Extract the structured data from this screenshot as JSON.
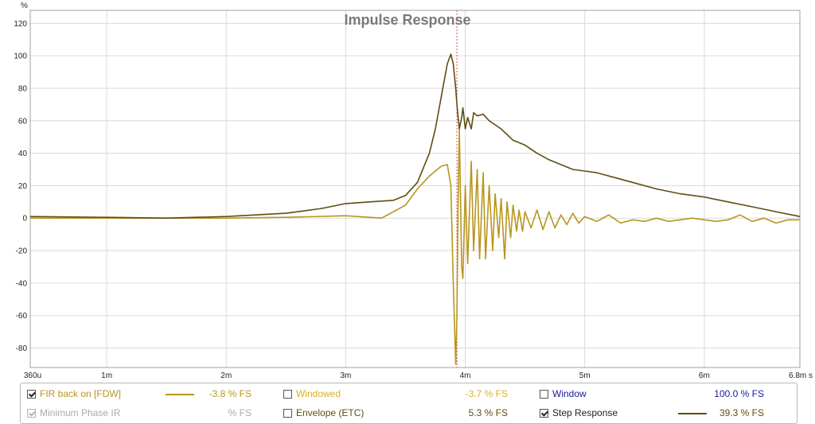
{
  "chart_data": {
    "type": "line",
    "title": "Impulse Response",
    "ylabel": "%",
    "xlabel": "s",
    "ylim": [
      -92,
      128
    ],
    "xlim": [
      0.36,
      6.8
    ],
    "yticks": [
      "120",
      "100",
      "80",
      "60",
      "40",
      "20",
      "0",
      "-20",
      "-40",
      "-60",
      "-80"
    ],
    "xticks": [
      {
        "v": 0.36,
        "label": "360u"
      },
      {
        "v": 1,
        "label": "1m"
      },
      {
        "v": 2,
        "label": "2m"
      },
      {
        "v": 3,
        "label": "3m"
      },
      {
        "v": 4,
        "label": "4m"
      },
      {
        "v": 5,
        "label": "5m"
      },
      {
        "v": 6,
        "label": "6m"
      },
      {
        "v": 6.8,
        "label": "6.8m s"
      }
    ],
    "grid": true,
    "cursor_x": 3.93,
    "series": [
      {
        "name": "FIR back on [FDW]",
        "color": "#b8961e",
        "x": [
          0.36,
          1,
          1.5,
          2,
          2.5,
          3,
          3.3,
          3.5,
          3.6,
          3.7,
          3.8,
          3.85,
          3.88,
          3.9,
          3.92,
          3.93,
          3.94,
          3.95,
          3.97,
          3.98,
          4.0,
          4.02,
          4.05,
          4.07,
          4.1,
          4.12,
          4.15,
          4.17,
          4.2,
          4.23,
          4.25,
          4.28,
          4.3,
          4.33,
          4.35,
          4.38,
          4.4,
          4.43,
          4.45,
          4.48,
          4.5,
          4.55,
          4.6,
          4.65,
          4.7,
          4.75,
          4.8,
          4.85,
          4.9,
          4.95,
          5.0,
          5.1,
          5.2,
          5.3,
          5.4,
          5.5,
          5.6,
          5.7,
          5.8,
          5.9,
          6.0,
          6.1,
          6.2,
          6.3,
          6.4,
          6.5,
          6.6,
          6.7,
          6.8
        ],
        "y": [
          0,
          0,
          0,
          0,
          0.5,
          1.5,
          0,
          8,
          18,
          26,
          32,
          33,
          20,
          -40,
          -90,
          -60,
          10,
          55,
          -30,
          -37,
          20,
          -28,
          35,
          -20,
          30,
          -25,
          28,
          -25,
          20,
          -20,
          15,
          -12,
          12,
          -25,
          10,
          -12,
          8,
          -8,
          5,
          -8,
          4,
          -6,
          5,
          -7,
          4,
          -6,
          2,
          -4,
          3,
          -3,
          1,
          -2,
          2,
          -3,
          -1,
          -2,
          0,
          -2,
          -1,
          0,
          -1,
          -2,
          -1,
          2,
          -2,
          0,
          -3,
          -1,
          -1
        ]
      },
      {
        "name": "Step Response",
        "color": "#5e4d14",
        "x": [
          0.36,
          1,
          1.5,
          2,
          2.5,
          2.8,
          3.0,
          3.2,
          3.4,
          3.5,
          3.6,
          3.7,
          3.75,
          3.8,
          3.85,
          3.88,
          3.9,
          3.92,
          3.93,
          3.95,
          3.97,
          3.98,
          4.0,
          4.02,
          4.05,
          4.07,
          4.1,
          4.15,
          4.2,
          4.3,
          4.4,
          4.5,
          4.6,
          4.7,
          4.8,
          4.9,
          5.0,
          5.1,
          5.2,
          5.4,
          5.6,
          5.8,
          6.0,
          6.2,
          6.4,
          6.6,
          6.8
        ],
        "y": [
          1,
          0.5,
          0,
          1,
          3,
          6,
          9,
          10,
          11,
          14,
          22,
          40,
          55,
          75,
          95,
          101,
          95,
          80,
          70,
          55,
          62,
          68,
          55,
          62,
          55,
          65,
          63,
          64,
          60,
          55,
          48,
          45,
          40,
          36,
          33,
          30,
          29,
          28,
          26,
          22,
          18,
          15,
          13,
          10,
          7,
          4,
          1
        ]
      }
    ]
  },
  "legend": {
    "fir": {
      "label": "FIR back on [FDW]",
      "value": "-3.8 % FS",
      "checked": true
    },
    "windowed": {
      "label": "Windowed",
      "value": "-3.7 % FS",
      "checked": false
    },
    "window": {
      "label": "Window",
      "value": "100.0 % FS",
      "checked": false
    },
    "minphase": {
      "label": "Minimum Phase IR",
      "value": "% FS",
      "checked": true
    },
    "envelope": {
      "label": "Envelope (ETC)",
      "value": "5.3 % FS",
      "checked": false
    },
    "step": {
      "label": "Step Response",
      "value": "39.3 % FS",
      "checked": true
    }
  },
  "colors": {
    "fir": "#b8961e",
    "windowed": "#d8b02a",
    "window": "#1a1aa0",
    "disabled": "#aaaaaa",
    "step": "#5e4d14",
    "cursor": "#e05050"
  }
}
